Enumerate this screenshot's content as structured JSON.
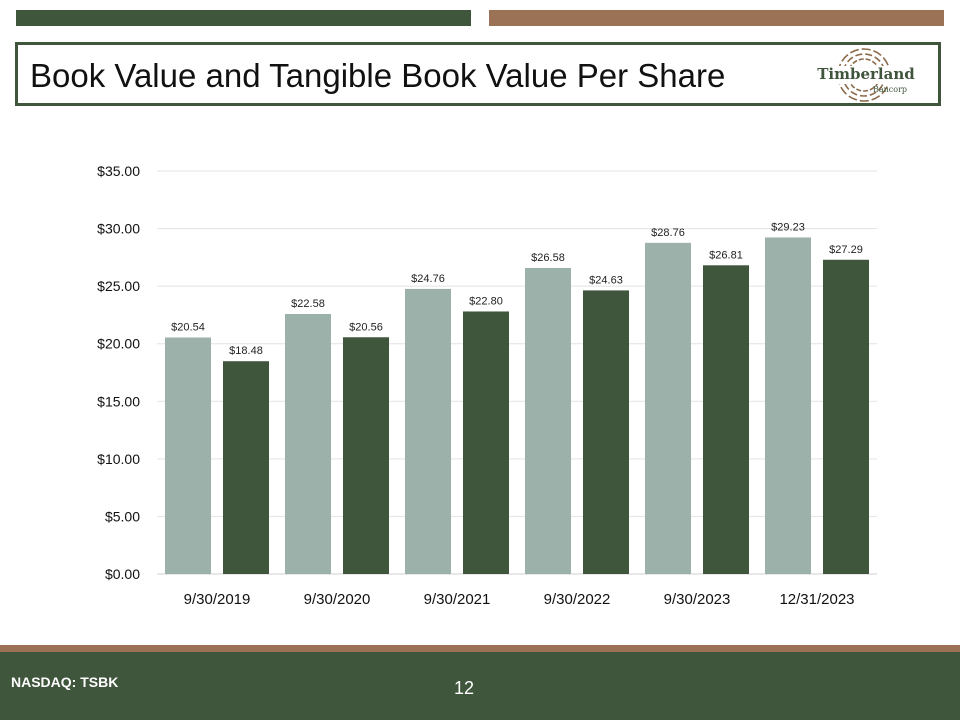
{
  "slide": {
    "title": "Book Value and Tangible Book Value Per Share",
    "logo_name": "Timberland",
    "logo_sub": "Bancorp",
    "ticker": "NASDAQ: TSBK",
    "page_number": "12"
  },
  "colors": {
    "dark_green": "#3f553c",
    "brown": "#9b7256",
    "light_gray_green": "#9bb1aa",
    "logo_brown": "#8a6a4a",
    "logo_green": "#3f553c"
  },
  "chart_data": {
    "type": "bar",
    "categories": [
      "9/30/2019",
      "9/30/2020",
      "9/30/2021",
      "9/30/2022",
      "9/30/2023",
      "12/31/2023"
    ],
    "series": [
      {
        "color": "#9bb1aa",
        "values": [
          20.54,
          22.58,
          24.76,
          26.58,
          28.76,
          29.23
        ],
        "labels": [
          "$20.54",
          "$22.58",
          "$24.76",
          "$26.58",
          "$28.76",
          "$29.23"
        ]
      },
      {
        "color": "#3f553c",
        "values": [
          18.48,
          20.56,
          22.8,
          24.63,
          26.81,
          27.29
        ],
        "labels": [
          "$18.48",
          "$20.56",
          "$22.80",
          "$24.63",
          "$26.81",
          "$27.29"
        ]
      }
    ],
    "yticks": [
      0,
      5,
      10,
      15,
      20,
      25,
      30,
      35
    ],
    "ytick_labels": [
      "$0.00",
      "$5.00",
      "$10.00",
      "$15.00",
      "$20.00",
      "$25.00",
      "$30.00",
      "$35.00"
    ],
    "ylim": [
      0,
      35
    ],
    "grid": true,
    "legend": "none"
  }
}
